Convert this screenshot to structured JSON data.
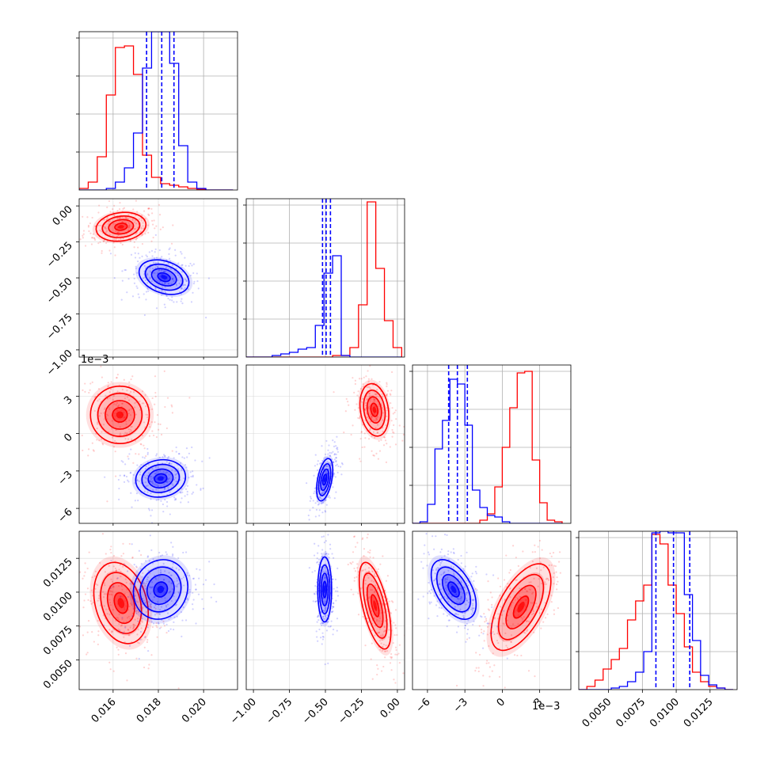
{
  "chart_data": {
    "type": "corner",
    "title": "",
    "series": [
      {
        "name": "",
        "color": "#0000ff"
      },
      {
        "name": "",
        "color": "#ff0000"
      }
    ],
    "parameters": [
      {
        "label": "",
        "range": [
          0.0145,
          0.0215
        ],
        "ticks": [
          0.016,
          0.018,
          0.02
        ],
        "tick_labels": [
          "0.016",
          "0.018",
          "0.020"
        ],
        "offset": ""
      },
      {
        "label": "",
        "range": [
          -1.05,
          0.05
        ],
        "ticks": [
          -1.0,
          -0.75,
          -0.5,
          -0.25,
          0.0
        ],
        "tick_labels": [
          "−1.00",
          "−0.75",
          "−0.50",
          "−0.25",
          "0.00"
        ],
        "offset": ""
      },
      {
        "label": "",
        "range": [
          -7.2,
          5.5
        ],
        "ticks": [
          -6,
          -3,
          0,
          3
        ],
        "tick_labels": [
          "−6",
          "−3",
          "0",
          "3"
        ],
        "offset": "1e−3"
      },
      {
        "label": "",
        "range": [
          0.0028,
          0.0145
        ],
        "ticks": [
          0.005,
          0.0075,
          0.01,
          0.0125
        ],
        "tick_labels": [
          "0.0050",
          "0.0075",
          "0.0100",
          "0.0125"
        ],
        "offset": ""
      }
    ],
    "quantile_lines_blue": [
      [
        0.01748,
        0.01815,
        0.01869
      ],
      [
        -0.52,
        -0.495,
        -0.465
      ],
      [
        -4.3,
        -3.6,
        -2.8
      ],
      [
        0.0085,
        0.0098,
        0.011
      ]
    ],
    "marginal_histograms": [
      {
        "edges": [
          0.0145,
          0.0149,
          0.0153,
          0.0157,
          0.0161,
          0.0165,
          0.0169,
          0.0173,
          0.0177,
          0.0181,
          0.0185,
          0.0189,
          0.0193,
          0.0197,
          0.0201,
          0.0205,
          0.0209,
          0.0213
        ],
        "blue": [
          0,
          0,
          0,
          0.01,
          0.05,
          0.14,
          0.36,
          0.77,
          1.0,
          1.0,
          0.8,
          0.28,
          0.05,
          0.01,
          0,
          0,
          0
        ],
        "red": [
          0.01,
          0.05,
          0.21,
          0.6,
          0.9,
          0.91,
          0.73,
          0.22,
          0.08,
          0.04,
          0.03,
          0.02,
          0.01,
          0.005,
          0,
          0,
          0
        ]
      },
      {
        "edges": [
          -1.05,
          -0.99,
          -0.93,
          -0.87,
          -0.81,
          -0.75,
          -0.69,
          -0.63,
          -0.57,
          -0.51,
          -0.45,
          -0.39,
          -0.33,
          -0.27,
          -0.21,
          -0.15,
          -0.09,
          -0.03,
          0.03
        ],
        "blue": [
          0,
          0,
          0,
          0.01,
          0.02,
          0.03,
          0.05,
          0.06,
          0.2,
          0.53,
          0.64,
          0.01,
          0,
          0,
          0,
          0,
          0,
          0
        ],
        "red": [
          0,
          0,
          0,
          0,
          0,
          0,
          0,
          0,
          0,
          0,
          0.01,
          0.01,
          0.06,
          0.33,
          0.98,
          0.56,
          0.23,
          0.06
        ]
      },
      {
        "edges": [
          -7.2,
          -6.6,
          -6.0,
          -5.4,
          -4.8,
          -4.2,
          -3.6,
          -3.0,
          -2.4,
          -1.8,
          -1.2,
          -0.6,
          0.0,
          0.6,
          1.2,
          1.8,
          2.4,
          3.0,
          3.6,
          4.2,
          4.8
        ],
        "blue": [
          0,
          0.01,
          0.12,
          0.47,
          0.65,
          0.91,
          0.88,
          0.62,
          0.21,
          0.1,
          0.05,
          0.04,
          0.01,
          0,
          0,
          0,
          0,
          0,
          0,
          0
        ],
        "red": [
          0,
          0,
          0,
          0,
          0,
          0,
          0,
          0,
          0,
          0.02,
          0.06,
          0.23,
          0.48,
          0.73,
          0.95,
          0.96,
          0.4,
          0.13,
          0.02,
          0.01
        ]
      },
      {
        "edges": [
          0.0028,
          0.0034,
          0.004,
          0.0046,
          0.0052,
          0.0058,
          0.0064,
          0.007,
          0.0076,
          0.0082,
          0.0088,
          0.0094,
          0.01,
          0.0106,
          0.0112,
          0.0118,
          0.0124,
          0.013,
          0.0136,
          0.0142
        ],
        "blue": [
          0,
          0,
          0,
          0,
          0.01,
          0.02,
          0.05,
          0.11,
          0.24,
          0.99,
          1.0,
          0.99,
          0.99,
          0.6,
          0.31,
          0.09,
          0.03,
          0.01,
          0
        ],
        "red": [
          0,
          0.02,
          0.06,
          0.13,
          0.19,
          0.26,
          0.44,
          0.56,
          0.66,
          0.98,
          0.92,
          0.66,
          0.48,
          0.27,
          0.11,
          0.05,
          0.02,
          0.01,
          0
        ]
      }
    ],
    "contour_panels": [
      {
        "row": 1,
        "col": 0,
        "blue": {
          "center": [
            0.01825,
            -0.495
          ],
          "sigma": [
            0.00055,
            0.06
          ],
          "rho": -0.3
        },
        "red": {
          "center": [
            0.01635,
            -0.145
          ],
          "sigma": [
            0.00055,
            0.05
          ],
          "rho": 0.15
        }
      },
      {
        "row": 2,
        "col": 0,
        "blue": {
          "center": [
            0.0181,
            -3.6
          ],
          "sigma": [
            0.00055,
            0.75
          ],
          "rho": 0.1
        },
        "red": {
          "center": [
            0.0163,
            1.5
          ],
          "sigma": [
            0.00065,
            1.15
          ],
          "rho": 0.0
        }
      },
      {
        "row": 2,
        "col": 1,
        "blue": {
          "center": [
            -0.505,
            -3.7
          ],
          "sigma": [
            0.028,
            0.85
          ],
          "rho": 0.45
        },
        "red": {
          "center": [
            -0.16,
            1.9
          ],
          "sigma": [
            0.05,
            1.05
          ],
          "rho": -0.2
        }
      },
      {
        "row": 3,
        "col": 0,
        "blue": {
          "center": [
            0.0181,
            0.0102
          ],
          "sigma": [
            0.0006,
            0.0011
          ],
          "rho": 0.1
        },
        "red": {
          "center": [
            0.01635,
            0.0092
          ],
          "sigma": [
            0.0006,
            0.0015
          ],
          "rho": -0.25
        }
      },
      {
        "row": 3,
        "col": 1,
        "blue": {
          "center": [
            -0.505,
            0.0102
          ],
          "sigma": [
            0.024,
            0.0012
          ],
          "rho": 0.0
        },
        "red": {
          "center": [
            -0.155,
            0.009
          ],
          "sigma": [
            0.055,
            0.0016
          ],
          "rho": -0.6
        }
      },
      {
        "row": 3,
        "col": 2,
        "blue": {
          "center": [
            -3.9,
            0.0102
          ],
          "sigma": [
            0.9,
            0.0011
          ],
          "rho": -0.5
        },
        "red": {
          "center": [
            1.5,
            0.0089
          ],
          "sigma": [
            1.2,
            0.0016
          ],
          "rho": 0.6
        }
      }
    ]
  }
}
